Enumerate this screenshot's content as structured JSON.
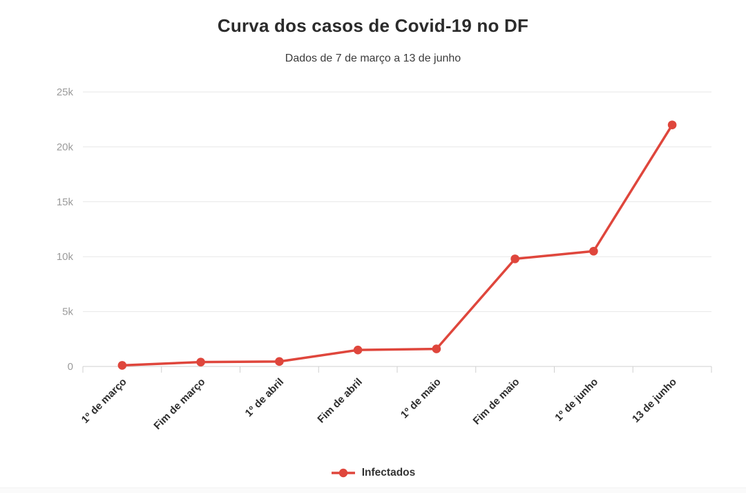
{
  "chart_data": {
    "type": "line",
    "title": "Curva dos casos de Covid-19 no DF",
    "subtitle": "Dados de 7 de março a 13 de junho",
    "categories": [
      "1º de março",
      "Fim de março",
      "1º de abril",
      "Fim de abril",
      "1º de maio",
      "Fim de maio",
      "1º de junho",
      "13 de junho"
    ],
    "series": [
      {
        "name": "Infectados",
        "color": "#df463c",
        "values": [
          100,
          400,
          450,
          1500,
          1600,
          9800,
          10500,
          22000
        ]
      }
    ],
    "ylim": [
      0,
      25000
    ],
    "yticks": [
      {
        "value": 0,
        "label": "0"
      },
      {
        "value": 5000,
        "label": "5k"
      },
      {
        "value": 10000,
        "label": "10k"
      },
      {
        "value": 15000,
        "label": "15k"
      },
      {
        "value": 20000,
        "label": "20k"
      },
      {
        "value": 25000,
        "label": "25k"
      }
    ],
    "grid": true,
    "legend_position": "bottom",
    "x_labels_rotation_deg": -45
  },
  "colors": {
    "series_red": "#df463c",
    "title_text": "#2b2b2b",
    "subtitle_text": "#3b3b3b",
    "y_axis_label": "#9b9b9b",
    "x_axis_label": "#2d2d2d",
    "gridline": "#e7e7e7",
    "axis_line": "#cfcfcf"
  }
}
